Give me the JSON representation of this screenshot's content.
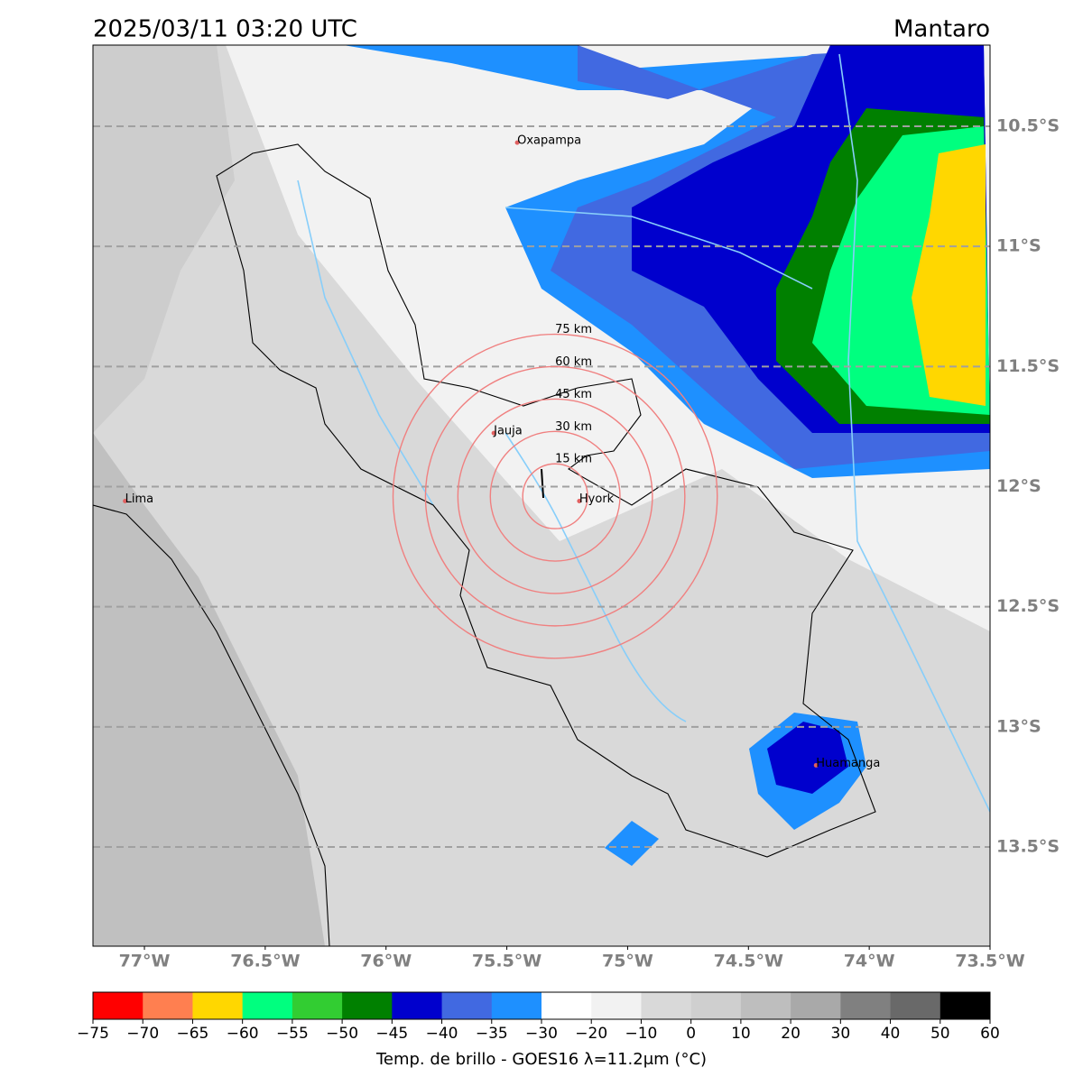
{
  "header": {
    "left_title": "2025/03/11 03:20 UTC",
    "right_title": "Mantaro"
  },
  "map": {
    "xlim": [
      -77.213,
      -73.5
    ],
    "ylim": [
      -13.913,
      -10.162
    ],
    "lat_ticks": [
      {
        "value": -10.5,
        "label": "10.5°S"
      },
      {
        "value": -11,
        "label": "11°S"
      },
      {
        "value": -11.5,
        "label": "11.5°S"
      },
      {
        "value": -12,
        "label": "12°S"
      },
      {
        "value": -12.5,
        "label": "12.5°S"
      },
      {
        "value": -13,
        "label": "13°S"
      },
      {
        "value": -13.5,
        "label": "13.5°S"
      }
    ],
    "lon_ticks": [
      {
        "value": -77,
        "label": "77°W"
      },
      {
        "value": -76.5,
        "label": "76.5°W"
      },
      {
        "value": -76,
        "label": "76°W"
      },
      {
        "value": -75.5,
        "label": "75.5°W"
      },
      {
        "value": -75,
        "label": "75°W"
      },
      {
        "value": -74.5,
        "label": "74.5°W"
      },
      {
        "value": -74,
        "label": "74°W"
      },
      {
        "value": -73.5,
        "label": "73.5°W"
      }
    ],
    "places": [
      {
        "name": "Oxapampa",
        "lon": -75.457,
        "lat": -10.568
      },
      {
        "name": "Jauja",
        "lon": -75.554,
        "lat": -11.777
      },
      {
        "name": "Hyork",
        "lon": -75.2,
        "lat": -12.06
      },
      {
        "name": "Lima",
        "lon": -77.08,
        "lat": -12.06
      },
      {
        "name": "Huamanga",
        "lon": -74.22,
        "lat": -13.16
      }
    ],
    "ring_center": {
      "lon": -75.3,
      "lat": -12.04
    },
    "rings": [
      {
        "label": "15 km",
        "radius_km": 15
      },
      {
        "label": "30 km",
        "radius_km": 30
      },
      {
        "label": "45 km",
        "radius_km": 45
      },
      {
        "label": "60 km",
        "radius_km": 60
      },
      {
        "label": "75 km",
        "radius_km": 75
      }
    ]
  },
  "colorbar": {
    "label": "Temp. de brillo - GOES16 λ=11.2μm (°C)",
    "bounds": [
      {
        "value": -75,
        "label": "−75"
      },
      {
        "value": -70,
        "label": "−70"
      },
      {
        "value": -65,
        "label": "−65"
      },
      {
        "value": -60,
        "label": "−60"
      },
      {
        "value": -55,
        "label": "−55"
      },
      {
        "value": -50,
        "label": "−50"
      },
      {
        "value": -45,
        "label": "−45"
      },
      {
        "value": -40,
        "label": "−40"
      },
      {
        "value": -35,
        "label": "−35"
      },
      {
        "value": -30,
        "label": "−30"
      },
      {
        "value": -20,
        "label": "−20"
      },
      {
        "value": -10,
        "label": "−10"
      },
      0,
      10,
      20,
      30,
      40,
      50,
      60
    ],
    "colors": [
      "#ff0000",
      "#ff7f50",
      "#ffd700",
      "#00ff7f",
      "#32cd32",
      "#008000",
      "#0000cd",
      "#4169e1",
      "#1e90ff",
      "#ffffff",
      "#f2f2f2",
      "#d9d9d9",
      "#cfcfcf",
      "#bebebe",
      "#a9a9a9",
      "#808080",
      "#696969",
      "#000000"
    ]
  }
}
